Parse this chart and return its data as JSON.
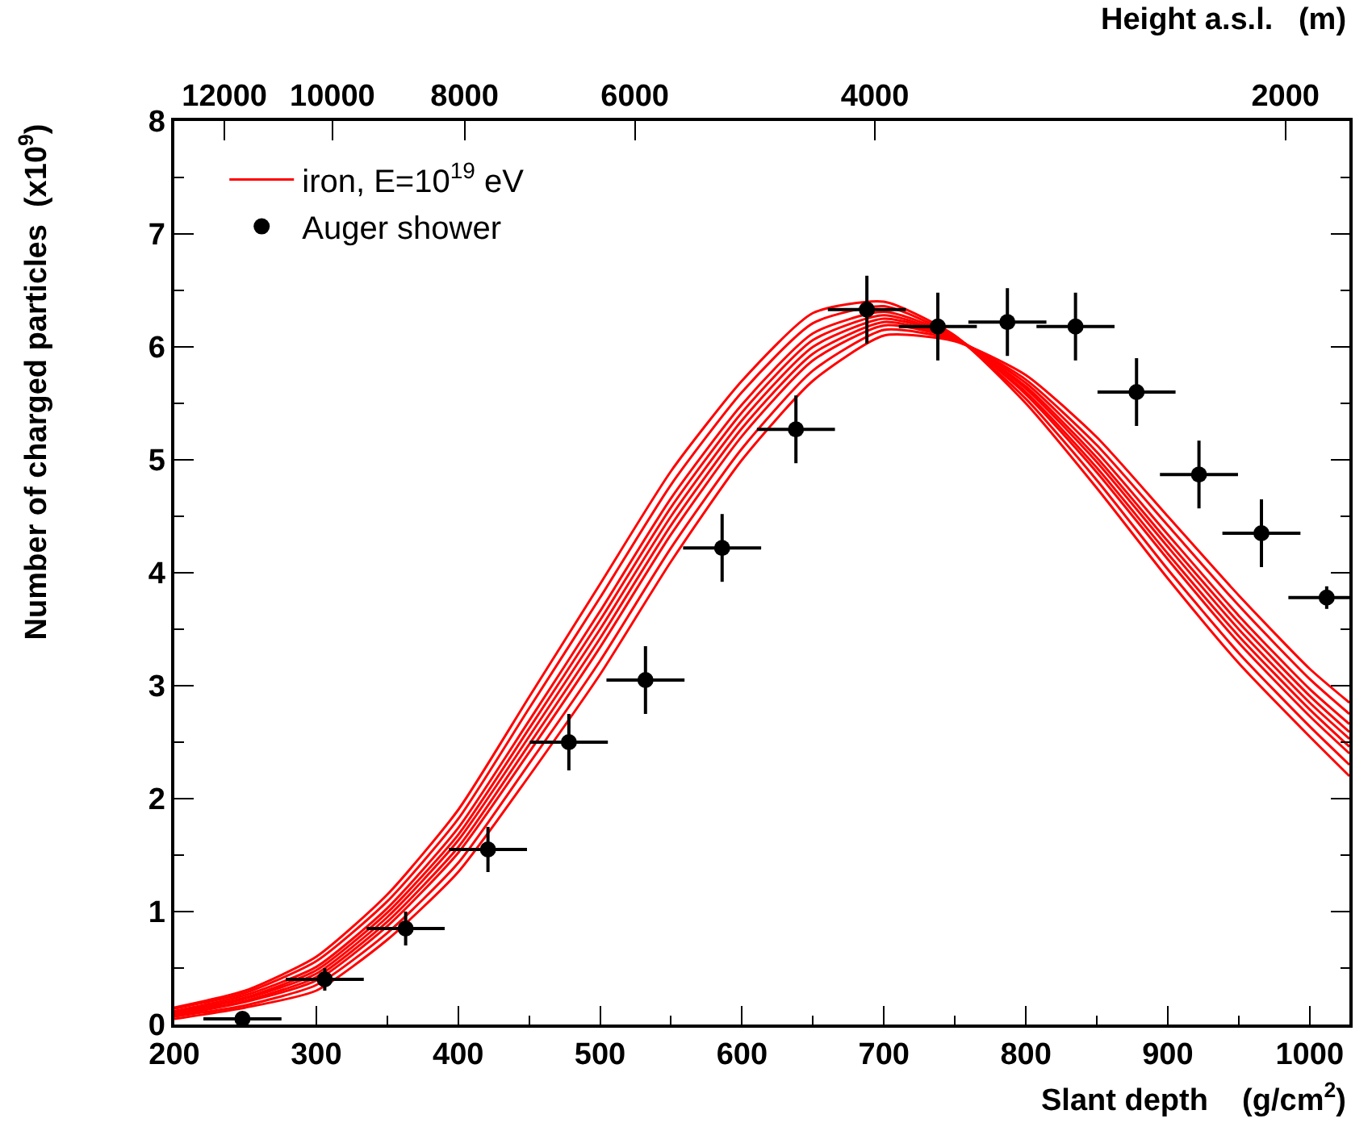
{
  "chart_data": {
    "type": "line",
    "xlabel": "Slant depth    (g/cm$^{2}$)",
    "ylabel": "Number of charged particles  (x10$^{9}$)",
    "x2label": "Height a.s.l.   (m)",
    "xlim": [
      200,
      1028
    ],
    "xticks": [
      200,
      300,
      400,
      500,
      600,
      700,
      800,
      900,
      1000
    ],
    "ylim": [
      0,
      8
    ],
    "yticks": [
      0,
      1,
      2,
      3,
      4,
      5,
      6,
      7,
      8
    ],
    "x2lim": [
      13060,
      1795
    ],
    "log": "x2",
    "x2ticks": [
      12000,
      10000,
      8000,
      6000,
      4000,
      2000
    ],
    "legend": "top left",
    "x": [
      200,
      250,
      300,
      350,
      400,
      450,
      500,
      550,
      600,
      650,
      700,
      750,
      800,
      850,
      900,
      950,
      1000,
      1028
    ],
    "series": [
      {
        "name": "iron, E=10$^{19}$ eV",
        "color": "#ff0000",
        "values": [
          0.15,
          0.3,
          0.6,
          1.15,
          1.9,
          2.9,
          3.9,
          4.9,
          5.7,
          6.3,
          6.4,
          6.1,
          5.5,
          4.75,
          3.95,
          3.2,
          2.55,
          2.2
        ]
      },
      {
        "color": "#ff0000",
        "values": [
          0.14,
          0.28,
          0.56,
          1.09,
          1.82,
          2.8,
          3.78,
          4.78,
          5.6,
          6.21,
          6.36,
          6.09,
          5.54,
          4.82,
          4.03,
          3.29,
          2.64,
          2.3
        ]
      },
      {
        "color": "#ff0000",
        "values": [
          0.12,
          0.26,
          0.51,
          1.03,
          1.74,
          2.69,
          3.66,
          4.66,
          5.49,
          6.12,
          6.31,
          6.09,
          5.58,
          4.89,
          4.12,
          3.38,
          2.73,
          2.4
        ]
      },
      {
        "color": "#ff0000",
        "values": [
          0.11,
          0.24,
          0.48,
          0.99,
          1.68,
          2.62,
          3.58,
          4.58,
          5.42,
          6.06,
          6.28,
          6.08,
          5.6,
          4.93,
          4.17,
          3.44,
          2.79,
          2.46
        ]
      },
      {
        "color": "#ff0000",
        "values": [
          0.1,
          0.23,
          0.45,
          0.95,
          1.63,
          2.55,
          3.5,
          4.5,
          5.35,
          6.0,
          6.25,
          6.08,
          5.63,
          4.98,
          4.23,
          3.5,
          2.85,
          2.53
        ]
      },
      {
        "color": "#ff0000",
        "values": [
          0.09,
          0.21,
          0.42,
          0.91,
          1.57,
          2.48,
          3.42,
          4.42,
          5.28,
          5.94,
          6.22,
          6.07,
          5.65,
          5.02,
          4.28,
          3.56,
          2.91,
          2.59
        ]
      },
      {
        "color": "#ff0000",
        "values": [
          0.08,
          0.2,
          0.39,
          0.87,
          1.52,
          2.41,
          3.34,
          4.34,
          5.21,
          5.88,
          6.19,
          6.07,
          5.68,
          5.07,
          4.34,
          3.62,
          2.97,
          2.66
        ]
      },
      {
        "color": "#ff0000",
        "values": [
          0.07,
          0.17,
          0.35,
          0.81,
          1.43,
          2.31,
          3.22,
          4.22,
          5.1,
          5.79,
          6.15,
          6.06,
          5.71,
          5.13,
          4.42,
          3.71,
          3.06,
          2.75
        ]
      },
      {
        "color": "#ff0000",
        "values": [
          0.05,
          0.15,
          0.3,
          0.75,
          1.35,
          2.2,
          3.1,
          4.1,
          5.0,
          5.7,
          6.1,
          6.05,
          5.75,
          5.2,
          4.5,
          3.8,
          3.15,
          2.85
        ]
      },
      {
        "name": "Auger shower",
        "type": "scatter",
        "marker": "circle",
        "color": "#000000",
        "x": [
          248,
          306,
          363,
          421,
          478,
          532,
          586,
          638,
          688,
          738,
          787,
          835,
          878,
          922,
          966,
          1012
        ],
        "values": [
          0.05,
          0.4,
          0.85,
          1.55,
          2.5,
          3.05,
          4.22,
          5.27,
          6.33,
          6.18,
          6.22,
          6.18,
          5.6,
          4.87,
          4.35,
          3.78
        ],
        "errors": [
          [
            0,
            0.1
          ],
          0.1,
          0.15,
          0.2,
          0.25,
          0.3,
          0.3,
          0.3,
          0.3,
          0.3,
          0.3,
          0.3,
          0.3,
          0.3,
          0.3,
          0.1
        ],
        "xerrors": [
          27.5,
          27.5,
          27.5,
          27.5,
          27.5,
          27.5,
          27.5,
          27.5,
          27.5,
          27.5,
          27.5,
          27.5,
          27.5,
          27.5,
          27.5,
          [
            985,
            1028
          ]
        ]
      }
    ]
  }
}
